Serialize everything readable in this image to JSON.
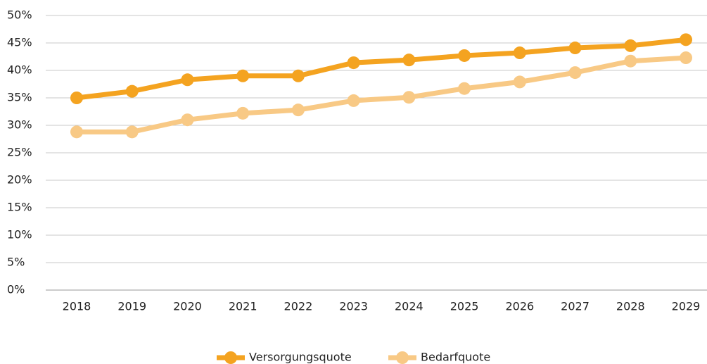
{
  "chart_data": {
    "type": "line",
    "categories": [
      "2018",
      "2019",
      "2020",
      "2021",
      "2022",
      "2023",
      "2024",
      "2025",
      "2026",
      "2027",
      "2028",
      "2029"
    ],
    "series": [
      {
        "name": "Versorgungsquote",
        "color": "#f4a320",
        "values": [
          35.0,
          36.2,
          38.3,
          39.0,
          39.0,
          41.4,
          41.9,
          42.7,
          43.2,
          44.1,
          44.5,
          45.6
        ]
      },
      {
        "name": "Bedarfquote",
        "color": "#f8c985",
        "values": [
          28.8,
          28.8,
          31.0,
          32.2,
          32.8,
          34.5,
          35.1,
          36.7,
          37.9,
          39.6,
          41.7,
          42.3
        ]
      }
    ],
    "ylim": [
      0,
      50
    ],
    "yticks": [
      {
        "value": 0,
        "label": "0%"
      },
      {
        "value": 5,
        "label": "5%"
      },
      {
        "value": 10,
        "label": "10%"
      },
      {
        "value": 15,
        "label": "15%"
      },
      {
        "value": 20,
        "label": "20%"
      },
      {
        "value": 25,
        "label": "25%"
      },
      {
        "value": 30,
        "label": "30%"
      },
      {
        "value": 35,
        "label": "35%"
      },
      {
        "value": 40,
        "label": "40%"
      },
      {
        "value": 45,
        "label": "45%"
      },
      {
        "value": 50,
        "label": "50%"
      }
    ],
    "grid": true,
    "legend": "bottom"
  }
}
